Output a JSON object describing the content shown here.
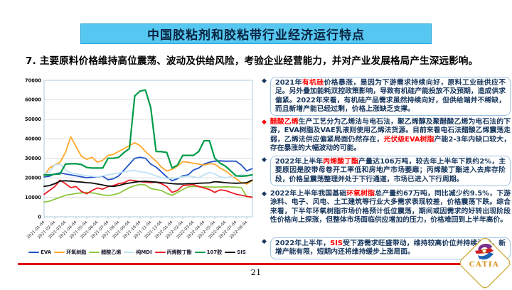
{
  "title_bar": {
    "text": "中国胶粘剂和胶粘带行业经济运行特点",
    "bg_color": "#55C7F1",
    "border_color": "#29A3D7"
  },
  "heading": {
    "text": "7. 主要原料价格维持高位震荡、波动及供给风险，考验企业经营能力，并对产业发展格局产生深远影响。"
  },
  "bullets": [
    {
      "boxed": true,
      "marker": "◆",
      "marker_color": "#17365D",
      "segments": [
        {
          "text": "2021年"
        },
        {
          "text": "有机硅",
          "color": "#FF0000"
        },
        {
          "text": "价格暴涨，是因为下游需求持续向好，原料工业硅供应不足。另外叠加能耗双控政策影响，导致有机硅产能投放不及预期，造成供求偏紧。2022年来看，有机硅产品需求虽然持续向好，但供给端并不稀缺，而且新增产能已经过剩，价格上涨缺乏支撑。"
        }
      ]
    },
    {
      "boxed": false,
      "marker": "◆",
      "marker_color": "#FF0000",
      "segments": [
        {
          "text": "醋酸乙烯",
          "color": "#FF0000"
        },
        {
          "text": "生产工艺分为乙烯法与电石法，聚乙烯醇及聚醋酸乙烯为电石法的下游，EVA树脂及VAE乳液则使用乙烯法货源。目前来看电石法醋酸乙烯震荡走弱，乙烯法供应偏紧局面仍然存在，"
        },
        {
          "text": "光伏级EVA树脂",
          "color": "#FF0000"
        },
        {
          "text": "产能2-3年内缺口较大，存在暴涨的大幅波动的可能。"
        }
      ]
    },
    {
      "boxed": true,
      "marker": "◆",
      "marker_color": "#17365D",
      "segments": [
        {
          "text": "2022年上半年"
        },
        {
          "text": "丙烯酸丁酯",
          "color": "#FF0000"
        },
        {
          "text": "产量达106万吨，较去年上半年下跌约2%，主要原因是胶带母卷开工率低和房地产市场萎靡；丙烯酸丁酯进入去库存阶段，价格呈震荡整理并处于下行通道，市场已进入下行周期。"
        }
      ]
    },
    {
      "boxed": false,
      "marker": "◆",
      "marker_color": "#17365D",
      "segments": [
        {
          "text": "2022年上半年我国基础"
        },
        {
          "text": "环氧树脂",
          "color": "#FF0000"
        },
        {
          "text": "总产量约67万吨，同比减少约9.5%，下游涂料、电子、风电、土工建筑等行业大多需求表现较差，价格震荡下跌。综合来看，下半年环氧树脂市场价格预计低位震荡，期间或因需求的好转出现阶段性价格向上探涨，但整体市场面临供应增加的压力，价格难回到上半年高价。"
        }
      ]
    },
    {
      "boxed": true,
      "marker": "◆",
      "marker_color": "#17365D",
      "segments": [
        {
          "text": "2022年上半年，"
        },
        {
          "text": "SIS",
          "color": "#FF0000"
        },
        {
          "text": "受下游需求旺盛带动，维持较高价位并持续波动，新增产能有限，短期内还将维持缓步上涨局面。"
        }
      ]
    }
  ],
  "chart_data": {
    "type": "line",
    "title": "",
    "xlabel": "",
    "ylabel": "",
    "ylim": [
      0,
      70000
    ],
    "yticks": [
      0,
      10000,
      20000,
      30000,
      40000,
      50000,
      60000,
      70000
    ],
    "grid": true,
    "legend_position": "bottom",
    "x_tick_labels": [
      "2021-01-04",
      "2021-02-04",
      "2021-03-04",
      "2021-04-04",
      "2021-05-04",
      "2021-06-04",
      "2021-07-04",
      "2021-08-04",
      "2021-09-04",
      "2021-10-04",
      "2021-11-04",
      "2021-12-04",
      "2022-01-04",
      "2022-02-04",
      "2022-03-04",
      "2022-04-04",
      "2022-05-04",
      "2022-06-04",
      "2022-07-04",
      "2022-08-04"
    ],
    "points_per_month": 2,
    "series": [
      {
        "name": "EVA",
        "color": "#1F52C8",
        "width": 1.8,
        "values": [
          20500,
          20800,
          22000,
          22500,
          22000,
          21500,
          21000,
          20500,
          20000,
          20300,
          20500,
          20800,
          19000,
          19500,
          21000,
          24000,
          27000,
          30000,
          30500,
          30000,
          27000,
          25500,
          23000,
          20500,
          18500,
          19500,
          21000,
          21500,
          24000,
          25000,
          27000,
          28000,
          28500,
          28700,
          28500,
          28600,
          28500,
          26500,
          23500,
          24700
        ]
      },
      {
        "name": "环氧树脂",
        "color": "#FFA728",
        "width": 1.8,
        "values": [
          21000,
          25000,
          26500,
          28000,
          33000,
          41000,
          36000,
          31000,
          29500,
          30500,
          28000,
          29000,
          31500,
          32000,
          33500,
          35000,
          36500,
          38000,
          36500,
          33500,
          31000,
          28500,
          25500,
          23500,
          24300,
          26000,
          28300,
          28000,
          27500,
          27000,
          26500,
          27200,
          27000,
          25000,
          23500,
          21500,
          19500,
          17500,
          16800,
          18500
        ]
      },
      {
        "name": "醋酸乙烯",
        "color": "#8DC63F",
        "width": 1.8,
        "values": [
          7500,
          8000,
          9000,
          10000,
          11000,
          11500,
          12000,
          12300,
          12500,
          12300,
          11800,
          11200,
          10900,
          11300,
          12000,
          13500,
          15000,
          16000,
          16600,
          16300,
          14500,
          14000,
          13500,
          12000,
          11000,
          12500,
          14000,
          15300,
          15600,
          15500,
          15400,
          15300,
          15200,
          15300,
          15400,
          15300,
          15200,
          15000,
          10300,
          10200
        ]
      },
      {
        "name": "纯MDI",
        "color": "#BFE2F4",
        "width": 1.8,
        "values": [
          21800,
          23000,
          26500,
          27000,
          24000,
          22500,
          22000,
          21500,
          21000,
          20800,
          20500,
          21000,
          21500,
          22000,
          22500,
          23000,
          23500,
          23800,
          23000,
          22800,
          22000,
          21000,
          20000,
          19800,
          19500,
          20000,
          20500,
          21000,
          20500,
          20000,
          21500,
          22800,
          22000,
          20500,
          20000,
          20500,
          21000,
          21500,
          21200,
          21500
        ]
      },
      {
        "name": "丙烯酸丁酯",
        "color": "#ED1C24",
        "width": 1.8,
        "values": [
          11500,
          13500,
          15500,
          18800,
          17000,
          15000,
          15500,
          13000,
          11800,
          13500,
          14800,
          14200,
          15500,
          16000,
          17000,
          17500,
          18800,
          18500,
          18000,
          17800,
          17500,
          17800,
          17000,
          15500,
          12500,
          13500,
          16000,
          16300,
          16500,
          15500,
          14800,
          14000,
          12500,
          13800,
          13500,
          12500,
          11600,
          11000,
          10500,
          10000
        ]
      },
      {
        "name": "107胶",
        "color": "#009B48",
        "width": 2.2,
        "values": [
          21500,
          21500,
          21800,
          22000,
          27000,
          27200,
          27200,
          26800,
          25300,
          25000,
          25000,
          25000,
          30000,
          30000,
          30500,
          33000,
          35000,
          62000,
          64500,
          65000,
          56000,
          33500,
          33400,
          33000,
          25000,
          26500,
          31500,
          31500,
          31500,
          33500,
          39000,
          39000,
          30000,
          27500,
          26000,
          23500,
          21000,
          20800,
          21000,
          21500
        ]
      },
      {
        "name": "SIS",
        "color": "#0A0A0A",
        "width": 1.8,
        "values": [
          15600,
          16000,
          17000,
          18300,
          18500,
          18300,
          18000,
          17800,
          17500,
          17300,
          16800,
          16300,
          15800,
          15600,
          16000,
          16800,
          17300,
          17800,
          18100,
          18200,
          18000,
          17800,
          17500,
          17300,
          17000,
          16800,
          16800,
          17000,
          17000,
          17200,
          17300,
          17400,
          18000,
          17800,
          17500,
          17300,
          17200,
          17300,
          17500,
          18800
        ]
      }
    ]
  },
  "footer": {
    "page_number": "21",
    "divider_color": "#E00000"
  },
  "logo": {
    "text": "CATIA",
    "border_color": "#C9A227",
    "text_color": "#DD9522",
    "mark_colors": {
      "purple": "#7B2D8B",
      "red": "#CC2027",
      "blue": "#1C63B7"
    }
  }
}
